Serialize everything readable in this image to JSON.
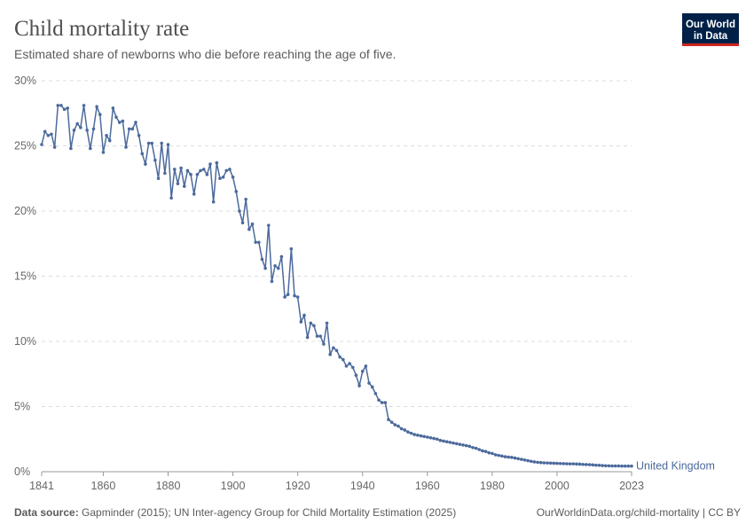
{
  "chart_data": {
    "type": "line",
    "title": "Child mortality rate",
    "subtitle": "Estimated share of newborns who die before reaching the age of five.",
    "source_label": "Data source:",
    "source": "Gapminder (2015); UN Inter-agency Group for Child Mortality Estimation (2025)",
    "credit": "OurWorldinData.org/child-mortality | CC BY",
    "logo": [
      "Our World",
      "in Data"
    ],
    "xlim": [
      1841,
      2023
    ],
    "xticks": [
      1841,
      1860,
      1880,
      1900,
      1920,
      1940,
      1960,
      1980,
      2000,
      2023
    ],
    "ylim": [
      0,
      30
    ],
    "yticks": [
      {
        "value": 0,
        "label": "0%"
      },
      {
        "value": 5,
        "label": "5%"
      },
      {
        "value": 10,
        "label": "10%"
      },
      {
        "value": 15,
        "label": "15%"
      },
      {
        "value": 20,
        "label": "20%"
      },
      {
        "value": 25,
        "label": "25%"
      },
      {
        "value": 30,
        "label": "30%"
      }
    ],
    "grid": true,
    "x": [
      1841,
      1842,
      1843,
      1844,
      1845,
      1846,
      1847,
      1848,
      1849,
      1850,
      1851,
      1852,
      1853,
      1854,
      1855,
      1856,
      1857,
      1858,
      1859,
      1860,
      1861,
      1862,
      1863,
      1864,
      1865,
      1866,
      1867,
      1868,
      1869,
      1870,
      1871,
      1872,
      1873,
      1874,
      1875,
      1876,
      1877,
      1878,
      1879,
      1880,
      1881,
      1882,
      1883,
      1884,
      1885,
      1886,
      1887,
      1888,
      1889,
      1890,
      1891,
      1892,
      1893,
      1894,
      1895,
      1896,
      1897,
      1898,
      1899,
      1900,
      1901,
      1902,
      1903,
      1904,
      1905,
      1906,
      1907,
      1908,
      1909,
      1910,
      1911,
      1912,
      1913,
      1914,
      1915,
      1916,
      1917,
      1918,
      1919,
      1920,
      1921,
      1922,
      1923,
      1924,
      1925,
      1926,
      1927,
      1928,
      1929,
      1930,
      1931,
      1932,
      1933,
      1934,
      1935,
      1936,
      1937,
      1938,
      1939,
      1940,
      1941,
      1942,
      1943,
      1944,
      1945,
      1946,
      1947,
      1948,
      1949,
      1950,
      1951,
      1952,
      1953,
      1954,
      1955,
      1956,
      1957,
      1958,
      1959,
      1960,
      1961,
      1962,
      1963,
      1964,
      1965,
      1966,
      1967,
      1968,
      1969,
      1970,
      1971,
      1972,
      1973,
      1974,
      1975,
      1976,
      1977,
      1978,
      1979,
      1980,
      1981,
      1982,
      1983,
      1984,
      1985,
      1986,
      1987,
      1988,
      1989,
      1990,
      1991,
      1992,
      1993,
      1994,
      1995,
      1996,
      1997,
      1998,
      1999,
      2000,
      2001,
      2002,
      2003,
      2004,
      2005,
      2006,
      2007,
      2008,
      2009,
      2010,
      2011,
      2012,
      2013,
      2014,
      2015,
      2016,
      2017,
      2018,
      2019,
      2020,
      2021,
      2022,
      2023
    ],
    "series": [
      {
        "name": "United Kingdom",
        "color": "#4c6a9c",
        "values": [
          25.1,
          26.1,
          25.8,
          25.9,
          24.9,
          28.1,
          28.1,
          27.8,
          27.9,
          24.8,
          26.2,
          26.7,
          26.4,
          28.1,
          26.2,
          24.8,
          26.3,
          28.0,
          27.4,
          24.5,
          25.8,
          25.4,
          27.9,
          27.2,
          26.8,
          26.9,
          24.9,
          26.3,
          26.3,
          26.8,
          25.8,
          24.4,
          23.6,
          25.2,
          25.2,
          23.9,
          22.5,
          25.2,
          22.9,
          25.1,
          21.0,
          23.2,
          22.1,
          23.3,
          21.9,
          23.1,
          22.8,
          21.3,
          22.8,
          23.1,
          23.2,
          22.8,
          23.6,
          20.7,
          23.7,
          22.5,
          22.6,
          23.1,
          23.2,
          22.6,
          21.5,
          20.0,
          19.1,
          20.9,
          18.6,
          19.0,
          17.6,
          17.6,
          16.3,
          15.6,
          18.9,
          14.6,
          15.8,
          15.6,
          16.5,
          13.4,
          13.6,
          17.1,
          13.5,
          13.4,
          11.5,
          12.0,
          10.3,
          11.4,
          11.2,
          10.4,
          10.4,
          9.8,
          11.4,
          9.0,
          9.5,
          9.3,
          8.8,
          8.6,
          8.1,
          8.3,
          8.0,
          7.4,
          6.6,
          7.7,
          8.1,
          6.8,
          6.5,
          6.0,
          5.5,
          5.3,
          5.3,
          4.0,
          3.8,
          3.6,
          3.5,
          3.3,
          3.2,
          3.05,
          2.95,
          2.85,
          2.8,
          2.75,
          2.7,
          2.65,
          2.6,
          2.55,
          2.5,
          2.4,
          2.35,
          2.3,
          2.25,
          2.2,
          2.15,
          2.1,
          2.05,
          2.0,
          1.95,
          1.85,
          1.8,
          1.7,
          1.6,
          1.55,
          1.45,
          1.4,
          1.3,
          1.25,
          1.2,
          1.15,
          1.12,
          1.1,
          1.05,
          1.0,
          0.95,
          0.9,
          0.85,
          0.8,
          0.75,
          0.72,
          0.7,
          0.68,
          0.67,
          0.66,
          0.65,
          0.64,
          0.63,
          0.62,
          0.61,
          0.6,
          0.6,
          0.59,
          0.58,
          0.56,
          0.55,
          0.54,
          0.52,
          0.5,
          0.49,
          0.47,
          0.46,
          0.45,
          0.44,
          0.44,
          0.44,
          0.43,
          0.43,
          0.43,
          0.43
        ]
      }
    ]
  }
}
